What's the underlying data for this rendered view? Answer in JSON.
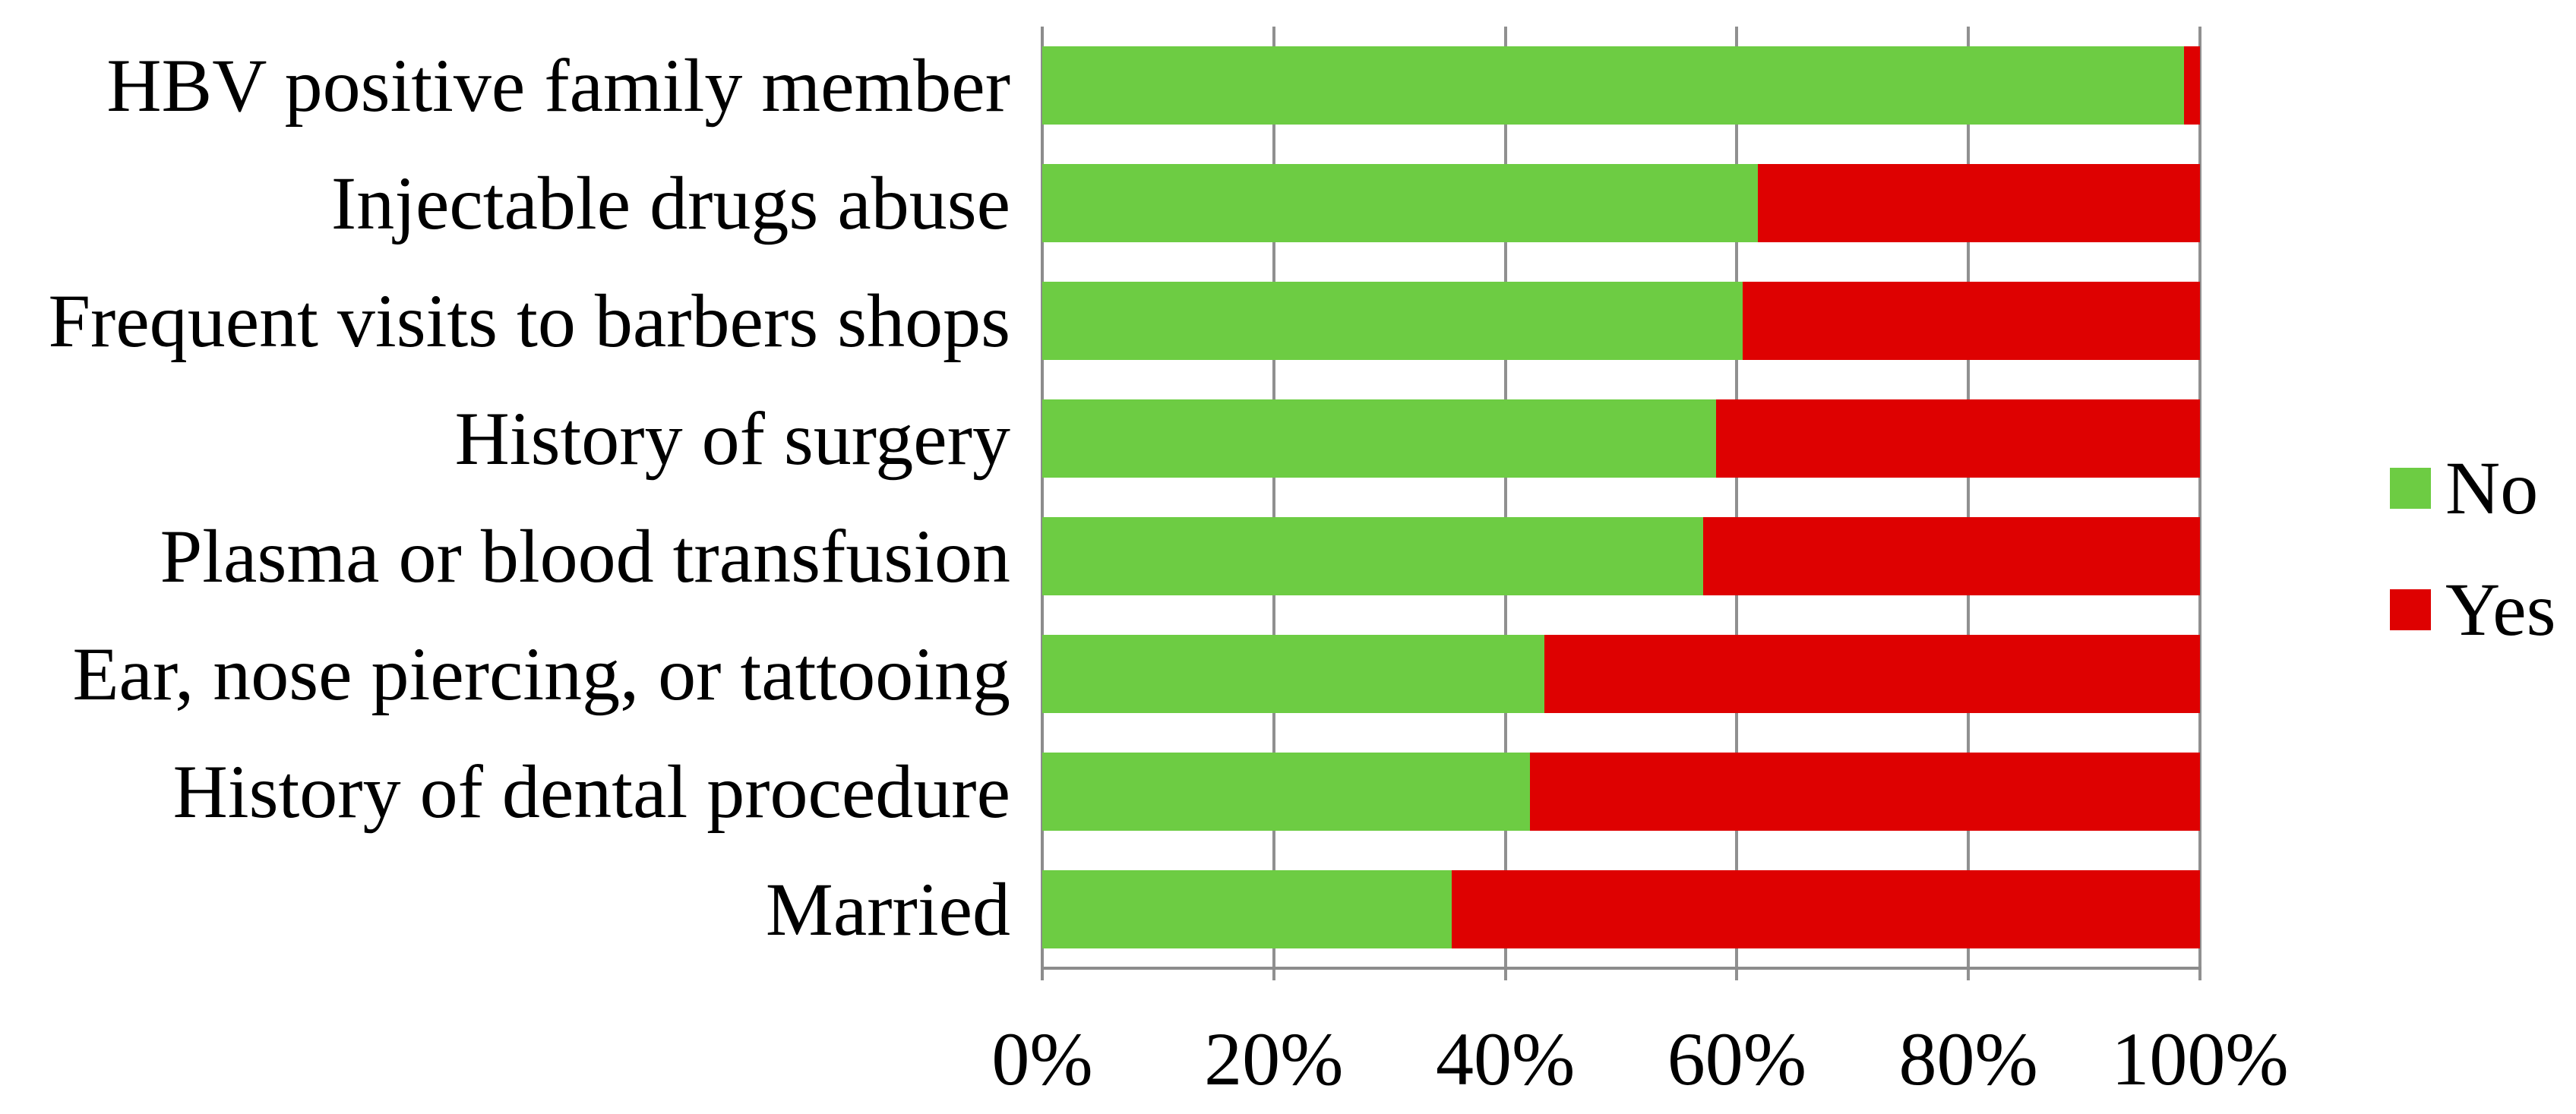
{
  "chart_data": {
    "type": "bar",
    "orientation": "horizontal",
    "stacked": true,
    "stacked_total": 100,
    "title": "",
    "xlabel": "",
    "ylabel": "",
    "xlim": [
      0,
      100
    ],
    "grid": "vertical",
    "legend_position": "right",
    "categories": [
      "HBV positive family member",
      "Injectable drugs abuse",
      "Frequent visits to barbers shops",
      "History of surgery",
      "Plasma or blood transfusion",
      "Ear, nose piercing, or tattooing",
      "History of dental procedure",
      "Married"
    ],
    "series": [
      {
        "name": "No",
        "color": "#6DCC43",
        "values": [
          98.6,
          61.8,
          60.5,
          58.2,
          57.1,
          43.4,
          42.1,
          35.4
        ]
      },
      {
        "name": "Yes",
        "color": "#DE0101",
        "values": [
          1.4,
          38.2,
          39.5,
          41.8,
          42.9,
          56.6,
          57.9,
          64.6
        ]
      }
    ],
    "x_ticks": [
      "0%",
      "20%",
      "40%",
      "60%",
      "80%",
      "100%"
    ]
  },
  "legend": {
    "items": [
      {
        "label": "No",
        "color": "#6DCC43"
      },
      {
        "label": "Yes",
        "color": "#DE0101"
      }
    ]
  },
  "colors": {
    "background": "#FFFFFF",
    "gridline": "#909090",
    "axis": "#8C8C8C",
    "text": "#000000"
  }
}
